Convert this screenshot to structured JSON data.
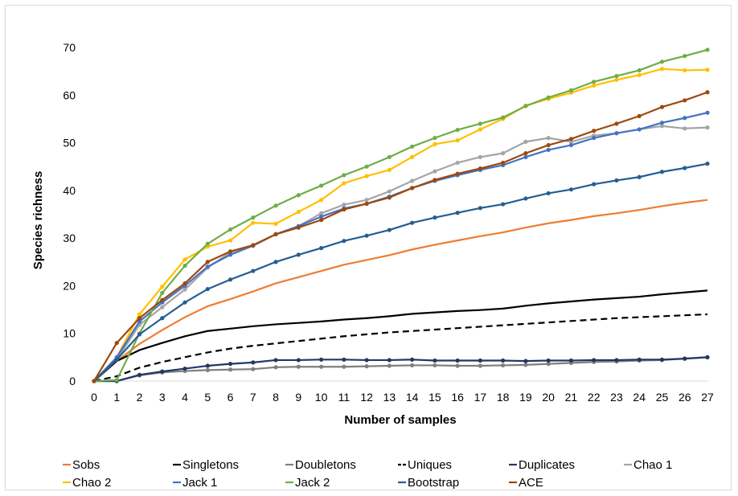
{
  "chart_data": {
    "type": "line",
    "xlabel": "Number of samples",
    "ylabel": "Species richness",
    "xlim": [
      0,
      27
    ],
    "ylim": [
      0,
      70
    ],
    "x_ticks": [
      0,
      1,
      2,
      3,
      4,
      5,
      6,
      7,
      8,
      9,
      10,
      11,
      12,
      13,
      14,
      15,
      16,
      17,
      18,
      19,
      20,
      21,
      22,
      23,
      24,
      25,
      26,
      27
    ],
    "y_ticks": [
      0,
      10,
      20,
      30,
      40,
      50,
      60,
      70
    ],
    "grid": "none",
    "legend_position": "bottom",
    "x": [
      0,
      1,
      2,
      3,
      4,
      5,
      6,
      7,
      8,
      9,
      10,
      11,
      12,
      13,
      14,
      15,
      16,
      17,
      18,
      19,
      20,
      21,
      22,
      23,
      24,
      25,
      26,
      27
    ],
    "series": [
      {
        "name": "Sobs",
        "color": "#ED7D31",
        "dashed": false,
        "markers": false,
        "values": [
          0,
          4.2,
          7.8,
          10.7,
          13.4,
          15.7,
          17.2,
          18.8,
          20.5,
          21.8,
          23.1,
          24.4,
          25.4,
          26.4,
          27.6,
          28.6,
          29.5,
          30.4,
          31.2,
          32.2,
          33.1,
          33.8,
          34.6,
          35.2,
          35.9,
          36.7,
          37.4,
          38.0
        ]
      },
      {
        "name": "Singletons",
        "color": "#000000",
        "dashed": false,
        "markers": false,
        "values": [
          0,
          4.2,
          6.5,
          8.0,
          9.4,
          10.5,
          11.0,
          11.5,
          11.9,
          12.2,
          12.5,
          12.9,
          13.2,
          13.6,
          14.1,
          14.4,
          14.7,
          14.9,
          15.2,
          15.8,
          16.3,
          16.7,
          17.1,
          17.4,
          17.7,
          18.2,
          18.6,
          19.0
        ]
      },
      {
        "name": "Doubletons",
        "color": "#7F7F7F",
        "dashed": false,
        "markers": true,
        "values": [
          0,
          0,
          1.2,
          1.8,
          2.1,
          2.3,
          2.4,
          2.5,
          2.9,
          3.0,
          3.0,
          3.0,
          3.1,
          3.2,
          3.3,
          3.3,
          3.2,
          3.2,
          3.3,
          3.4,
          3.6,
          3.8,
          4.0,
          4.1,
          4.3,
          4.4,
          4.7,
          5.0
        ]
      },
      {
        "name": "Uniques",
        "color": "#000000",
        "dashed": true,
        "markers": false,
        "values": [
          0,
          1.0,
          2.8,
          4.0,
          5.0,
          6.0,
          6.8,
          7.4,
          7.9,
          8.4,
          8.9,
          9.4,
          9.8,
          10.2,
          10.5,
          10.8,
          11.1,
          11.4,
          11.7,
          12.0,
          12.3,
          12.6,
          12.9,
          13.2,
          13.4,
          13.6,
          13.8,
          14.0
        ]
      },
      {
        "name": "Duplicates",
        "color": "#203864",
        "dashed": false,
        "markers": true,
        "values": [
          0,
          0,
          1.3,
          2.0,
          2.6,
          3.2,
          3.6,
          3.9,
          4.4,
          4.4,
          4.5,
          4.5,
          4.4,
          4.4,
          4.5,
          4.3,
          4.3,
          4.3,
          4.3,
          4.2,
          4.3,
          4.3,
          4.4,
          4.4,
          4.5,
          4.5,
          4.7,
          5.0
        ]
      },
      {
        "name": "Chao 1",
        "color": "#A5A5A5",
        "dashed": false,
        "markers": true,
        "values": [
          0,
          4.5,
          11.8,
          15.5,
          19.2,
          23.8,
          27.0,
          28.5,
          30.8,
          32.5,
          35.2,
          37.0,
          38.0,
          39.8,
          42.0,
          44.0,
          45.8,
          47.0,
          47.8,
          50.2,
          51.0,
          50.2,
          51.5,
          52.0,
          52.8,
          53.5,
          53.0,
          53.2
        ]
      },
      {
        "name": "Chao 2",
        "color": "#FFC000",
        "dashed": false,
        "markers": true,
        "values": [
          0,
          5.0,
          14.0,
          19.8,
          25.5,
          28.2,
          29.5,
          33.2,
          33.0,
          35.5,
          38.0,
          41.5,
          43.0,
          44.3,
          47.0,
          49.7,
          50.5,
          52.8,
          55.0,
          57.8,
          59.2,
          60.5,
          62.0,
          63.2,
          64.2,
          65.5,
          65.2,
          65.3
        ]
      },
      {
        "name": "Jack 1",
        "color": "#4472C4",
        "dashed": false,
        "markers": true,
        "values": [
          0,
          5.0,
          12.5,
          16.5,
          20.0,
          24.0,
          26.5,
          28.4,
          30.8,
          32.5,
          34.5,
          36.2,
          37.2,
          38.7,
          40.5,
          42.0,
          43.2,
          44.3,
          45.3,
          47.0,
          48.5,
          49.5,
          51.0,
          52.0,
          52.8,
          54.2,
          55.2,
          56.3
        ]
      },
      {
        "name": "Jack 2",
        "color": "#70AD47",
        "dashed": false,
        "markers": true,
        "values": [
          0,
          0.2,
          10.0,
          18.5,
          24.2,
          28.8,
          31.8,
          34.3,
          36.8,
          39.0,
          41.0,
          43.2,
          45.0,
          47.0,
          49.2,
          51.0,
          52.7,
          54.0,
          55.3,
          57.7,
          59.5,
          61.0,
          62.8,
          64.0,
          65.2,
          67.0,
          68.2,
          69.5
        ]
      },
      {
        "name": "Bootstrap",
        "color": "#255E91",
        "dashed": false,
        "markers": true,
        "values": [
          0,
          4.5,
          9.8,
          13.2,
          16.5,
          19.3,
          21.3,
          23.1,
          25.0,
          26.5,
          27.9,
          29.4,
          30.5,
          31.7,
          33.2,
          34.3,
          35.3,
          36.3,
          37.1,
          38.3,
          39.4,
          40.2,
          41.3,
          42.1,
          42.8,
          43.9,
          44.7,
          45.6
        ]
      },
      {
        "name": "ACE",
        "color": "#9E480E",
        "dashed": false,
        "markers": true,
        "values": [
          0,
          8.0,
          13.2,
          17.0,
          20.5,
          25.0,
          27.2,
          28.5,
          30.8,
          32.2,
          33.8,
          36.0,
          37.2,
          38.5,
          40.5,
          42.2,
          43.5,
          44.6,
          45.8,
          47.8,
          49.5,
          50.8,
          52.5,
          54.0,
          55.6,
          57.5,
          58.9,
          60.6
        ]
      }
    ]
  }
}
